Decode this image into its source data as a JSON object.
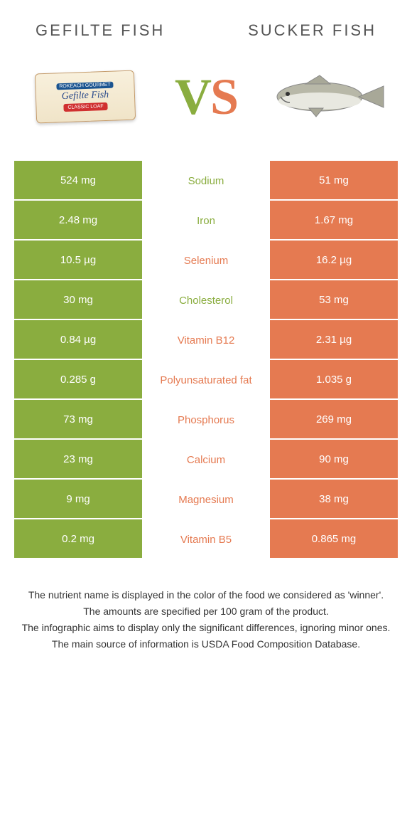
{
  "colors": {
    "left": "#8aad3f",
    "right": "#e57a51",
    "midBg": "#ffffff"
  },
  "header": {
    "left": "Gefilte fish",
    "right": "Sucker fish"
  },
  "vs": {
    "v": "V",
    "s": "S"
  },
  "package": {
    "band": "ROKEACH GOURMET",
    "name": "Gefilte Fish",
    "tag": "CLASSIC LOAF"
  },
  "rows": [
    {
      "left": "524 mg",
      "mid": "Sodium",
      "right": "51 mg",
      "winner": "left"
    },
    {
      "left": "2.48 mg",
      "mid": "Iron",
      "right": "1.67 mg",
      "winner": "left"
    },
    {
      "left": "10.5 µg",
      "mid": "Selenium",
      "right": "16.2 µg",
      "winner": "right"
    },
    {
      "left": "30 mg",
      "mid": "Cholesterol",
      "right": "53 mg",
      "winner": "left"
    },
    {
      "left": "0.84 µg",
      "mid": "Vitamin B12",
      "right": "2.31 µg",
      "winner": "right"
    },
    {
      "left": "0.285 g",
      "mid": "Polyunsaturated fat",
      "right": "1.035 g",
      "winner": "right"
    },
    {
      "left": "73 mg",
      "mid": "Phosphorus",
      "right": "269 mg",
      "winner": "right"
    },
    {
      "left": "23 mg",
      "mid": "Calcium",
      "right": "90 mg",
      "winner": "right"
    },
    {
      "left": "9 mg",
      "mid": "Magnesium",
      "right": "38 mg",
      "winner": "right"
    },
    {
      "left": "0.2 mg",
      "mid": "Vitamin B5",
      "right": "0.865 mg",
      "winner": "right"
    }
  ],
  "footnotes": [
    "The nutrient name is displayed in the color of the food we considered as 'winner'.",
    "The amounts are specified per 100 gram of the product.",
    "The infographic aims to display only the significant differences, ignoring minor ones.",
    "The main source of information is USDA Food Composition Database."
  ]
}
